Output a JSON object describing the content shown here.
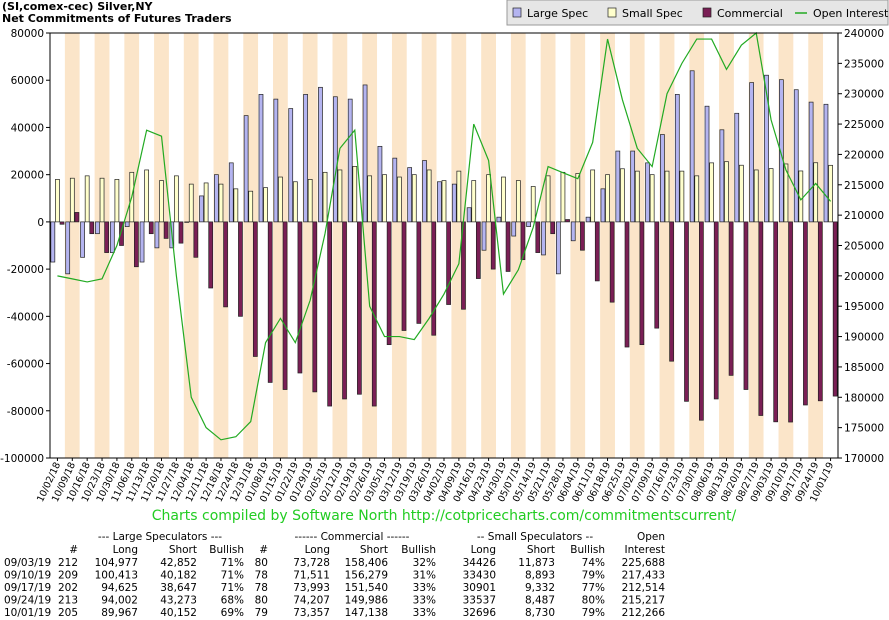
{
  "chart_data": {
    "type": "bar",
    "title": "(SI,comex-cec) Silver,NY",
    "subtitle": "Net Commitments of Futures Traders",
    "annotation": "Charts compiled by Software North  http://cotpricecharts.com/commitmentscurrent/",
    "categories": [
      "10/02/18",
      "10/09/18",
      "10/16/18",
      "10/23/18",
      "10/30/18",
      "11/06/18",
      "11/13/18",
      "11/20/18",
      "11/27/18",
      "12/04/18",
      "12/11/18",
      "12/18/18",
      "12/24/18",
      "12/31/18",
      "01/08/19",
      "01/15/19",
      "01/22/19",
      "01/29/19",
      "02/05/19",
      "02/12/19",
      "02/19/19",
      "02/26/19",
      "03/05/19",
      "03/12/19",
      "03/19/19",
      "03/26/19",
      "04/02/19",
      "04/09/19",
      "04/16/19",
      "04/23/19",
      "04/30/19",
      "05/07/19",
      "05/14/19",
      "05/21/19",
      "05/28/19",
      "06/04/19",
      "06/11/19",
      "06/18/19",
      "06/25/19",
      "07/02/19",
      "07/09/19",
      "07/16/19",
      "07/23/19",
      "07/30/19",
      "08/06/19",
      "08/13/19",
      "08/20/19",
      "08/27/19",
      "09/03/19",
      "09/10/19",
      "09/17/19",
      "09/24/19",
      "10/01/19"
    ],
    "series": [
      {
        "name": "Large Spec",
        "color": "#b4b4f0",
        "values": [
          -17000,
          -22000,
          -15000,
          -5000,
          -13000,
          -2000,
          -17000,
          -11000,
          -11000,
          0,
          11000,
          20000,
          25000,
          45000,
          54000,
          52000,
          48000,
          54000,
          57000,
          53000,
          52000,
          58000,
          32000,
          27000,
          23000,
          26000,
          17000,
          16000,
          6000,
          -12000,
          2000,
          -6000,
          -2000,
          -14000,
          -22000,
          -8000,
          2000,
          14000,
          30000,
          30000,
          25000,
          37000,
          54000,
          64000,
          49000,
          39000,
          46000,
          59000,
          62125,
          60231,
          55978,
          50729,
          49815
        ]
      },
      {
        "name": "Small Spec",
        "color": "#ffffcc",
        "values": [
          18000,
          18500,
          19500,
          18500,
          18000,
          21000,
          22000,
          17500,
          19500,
          16000,
          16500,
          16000,
          14000,
          13000,
          14500,
          19000,
          17000,
          18000,
          21000,
          22000,
          23500,
          19500,
          20000,
          19000,
          20000,
          22000,
          17500,
          21500,
          17500,
          20000,
          19000,
          17500,
          15000,
          19500,
          21000,
          20500,
          22000,
          20000,
          22500,
          21500,
          20000,
          21500,
          21500,
          19500,
          25000,
          25500,
          24000,
          22000,
          22553,
          24537,
          21569,
          25050,
          23966
        ]
      },
      {
        "name": "Commercial",
        "color": "#7a1f55",
        "values": [
          -1000,
          4000,
          -5000,
          -13000,
          -10000,
          -19000,
          -5000,
          -7000,
          -9000,
          -15000,
          -28000,
          -36000,
          -40000,
          -57000,
          -68000,
          -71000,
          -64000,
          -72000,
          -78000,
          -75000,
          -73000,
          -78000,
          -52000,
          -46000,
          -43000,
          -48000,
          -35000,
          -37000,
          -24000,
          -20000,
          -21000,
          -16000,
          -13000,
          -5000,
          1000,
          -12000,
          -25000,
          -34000,
          -53000,
          -52000,
          -45000,
          -59000,
          -76000,
          -84000,
          -75000,
          -65000,
          -71000,
          -82000,
          -84678,
          -84768,
          -77547,
          -75779,
          -73781
        ]
      },
      {
        "name": "Open Interest",
        "color": "#22aa22",
        "type": "line",
        "axis": "y2",
        "values": [
          200000,
          199500,
          199000,
          199500,
          205000,
          213000,
          224000,
          223000,
          200000,
          180000,
          175000,
          173000,
          173500,
          176000,
          189000,
          193000,
          189000,
          196000,
          207000,
          221000,
          224000,
          195000,
          190000,
          190000,
          189500,
          193000,
          197000,
          202000,
          225000,
          219000,
          197000,
          201000,
          208000,
          218000,
          217000,
          216000,
          222000,
          239000,
          229000,
          221000,
          218000,
          230000,
          235000,
          239000,
          239000,
          234000,
          238000,
          240000,
          225688,
          217433,
          212514,
          215217,
          212266
        ]
      }
    ],
    "ylim": [
      -100000,
      80000
    ],
    "yticks": [
      -100000,
      -80000,
      -60000,
      -40000,
      -20000,
      0,
      20000,
      40000,
      60000,
      80000
    ],
    "y2lim": [
      170000,
      240000
    ],
    "y2ticks": [
      170000,
      175000,
      180000,
      185000,
      190000,
      195000,
      200000,
      205000,
      210000,
      215000,
      220000,
      225000,
      230000,
      235000,
      240000
    ],
    "legend": "top-right",
    "band_color": "#fbe5c9"
  },
  "table": {
    "group_headers": [
      "--- Large Speculators ---",
      "------ Commercial ------",
      "-- Small Speculators --",
      "Open"
    ],
    "columns": [
      "#",
      "Long",
      "Short",
      "Bullish",
      "#",
      "Long",
      "Short",
      "Bullish",
      "Long",
      "Short",
      "Bullish",
      "Interest"
    ],
    "rows": [
      [
        "09/03/19",
        "212",
        "104,977",
        "42,852",
        "71%",
        "80",
        "73,728",
        "158,406",
        "32%",
        "34426",
        "11,873",
        "74%",
        "225,688"
      ],
      [
        "09/10/19",
        "209",
        "100,413",
        "40,182",
        "71%",
        "78",
        "71,511",
        "156,279",
        "31%",
        "33430",
        "8,893",
        "79%",
        "217,433"
      ],
      [
        "09/17/19",
        "202",
        "94,625",
        "38,647",
        "71%",
        "78",
        "73,993",
        "151,540",
        "33%",
        "30901",
        "9,332",
        "77%",
        "212,514"
      ],
      [
        "09/24/19",
        "213",
        "94,002",
        "43,273",
        "68%",
        "80",
        "74,207",
        "149,986",
        "33%",
        "33537",
        "8,487",
        "80%",
        "215,217"
      ],
      [
        "10/01/19",
        "205",
        "89,967",
        "40,152",
        "69%",
        "79",
        "73,357",
        "147,138",
        "33%",
        "32696",
        "8,730",
        "79%",
        "212,266"
      ]
    ]
  }
}
